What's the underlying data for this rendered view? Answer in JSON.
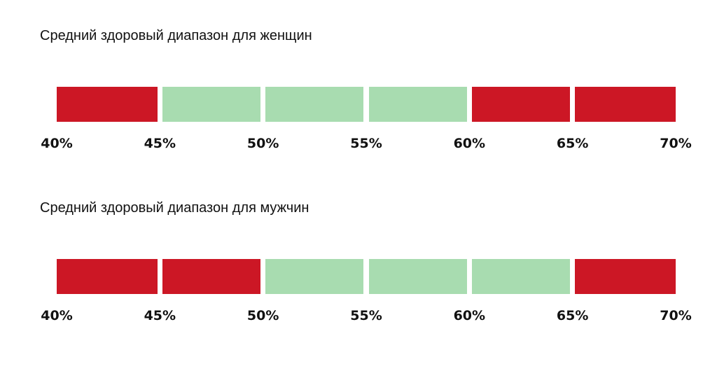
{
  "colors": {
    "unhealthy": "#cc1725",
    "healthy": "#a8dcb0"
  },
  "chart_data": [
    {
      "type": "bar",
      "title": "Средний здоровый диапазон для женщин",
      "ticks": [
        "40%",
        "45%",
        "50%",
        "55%",
        "60%",
        "65%",
        "70%"
      ],
      "xlim": [
        40,
        70
      ],
      "segments": [
        {
          "from": 40,
          "to": 45,
          "status": "unhealthy"
        },
        {
          "from": 45,
          "to": 50,
          "status": "healthy"
        },
        {
          "from": 50,
          "to": 55,
          "status": "healthy"
        },
        {
          "from": 55,
          "to": 60,
          "status": "healthy"
        },
        {
          "from": 60,
          "to": 65,
          "status": "unhealthy"
        },
        {
          "from": 65,
          "to": 70,
          "status": "unhealthy"
        }
      ],
      "healthy_range": [
        45,
        60
      ]
    },
    {
      "type": "bar",
      "title": "Средний здоровый диапазон для мужчин",
      "ticks": [
        "40%",
        "45%",
        "50%",
        "55%",
        "60%",
        "65%",
        "70%"
      ],
      "xlim": [
        40,
        70
      ],
      "segments": [
        {
          "from": 40,
          "to": 45,
          "status": "unhealthy"
        },
        {
          "from": 45,
          "to": 50,
          "status": "unhealthy"
        },
        {
          "from": 50,
          "to": 55,
          "status": "healthy"
        },
        {
          "from": 55,
          "to": 60,
          "status": "healthy"
        },
        {
          "from": 60,
          "to": 65,
          "status": "healthy"
        },
        {
          "from": 65,
          "to": 70,
          "status": "unhealthy"
        }
      ],
      "healthy_range": [
        50,
        65
      ]
    }
  ]
}
